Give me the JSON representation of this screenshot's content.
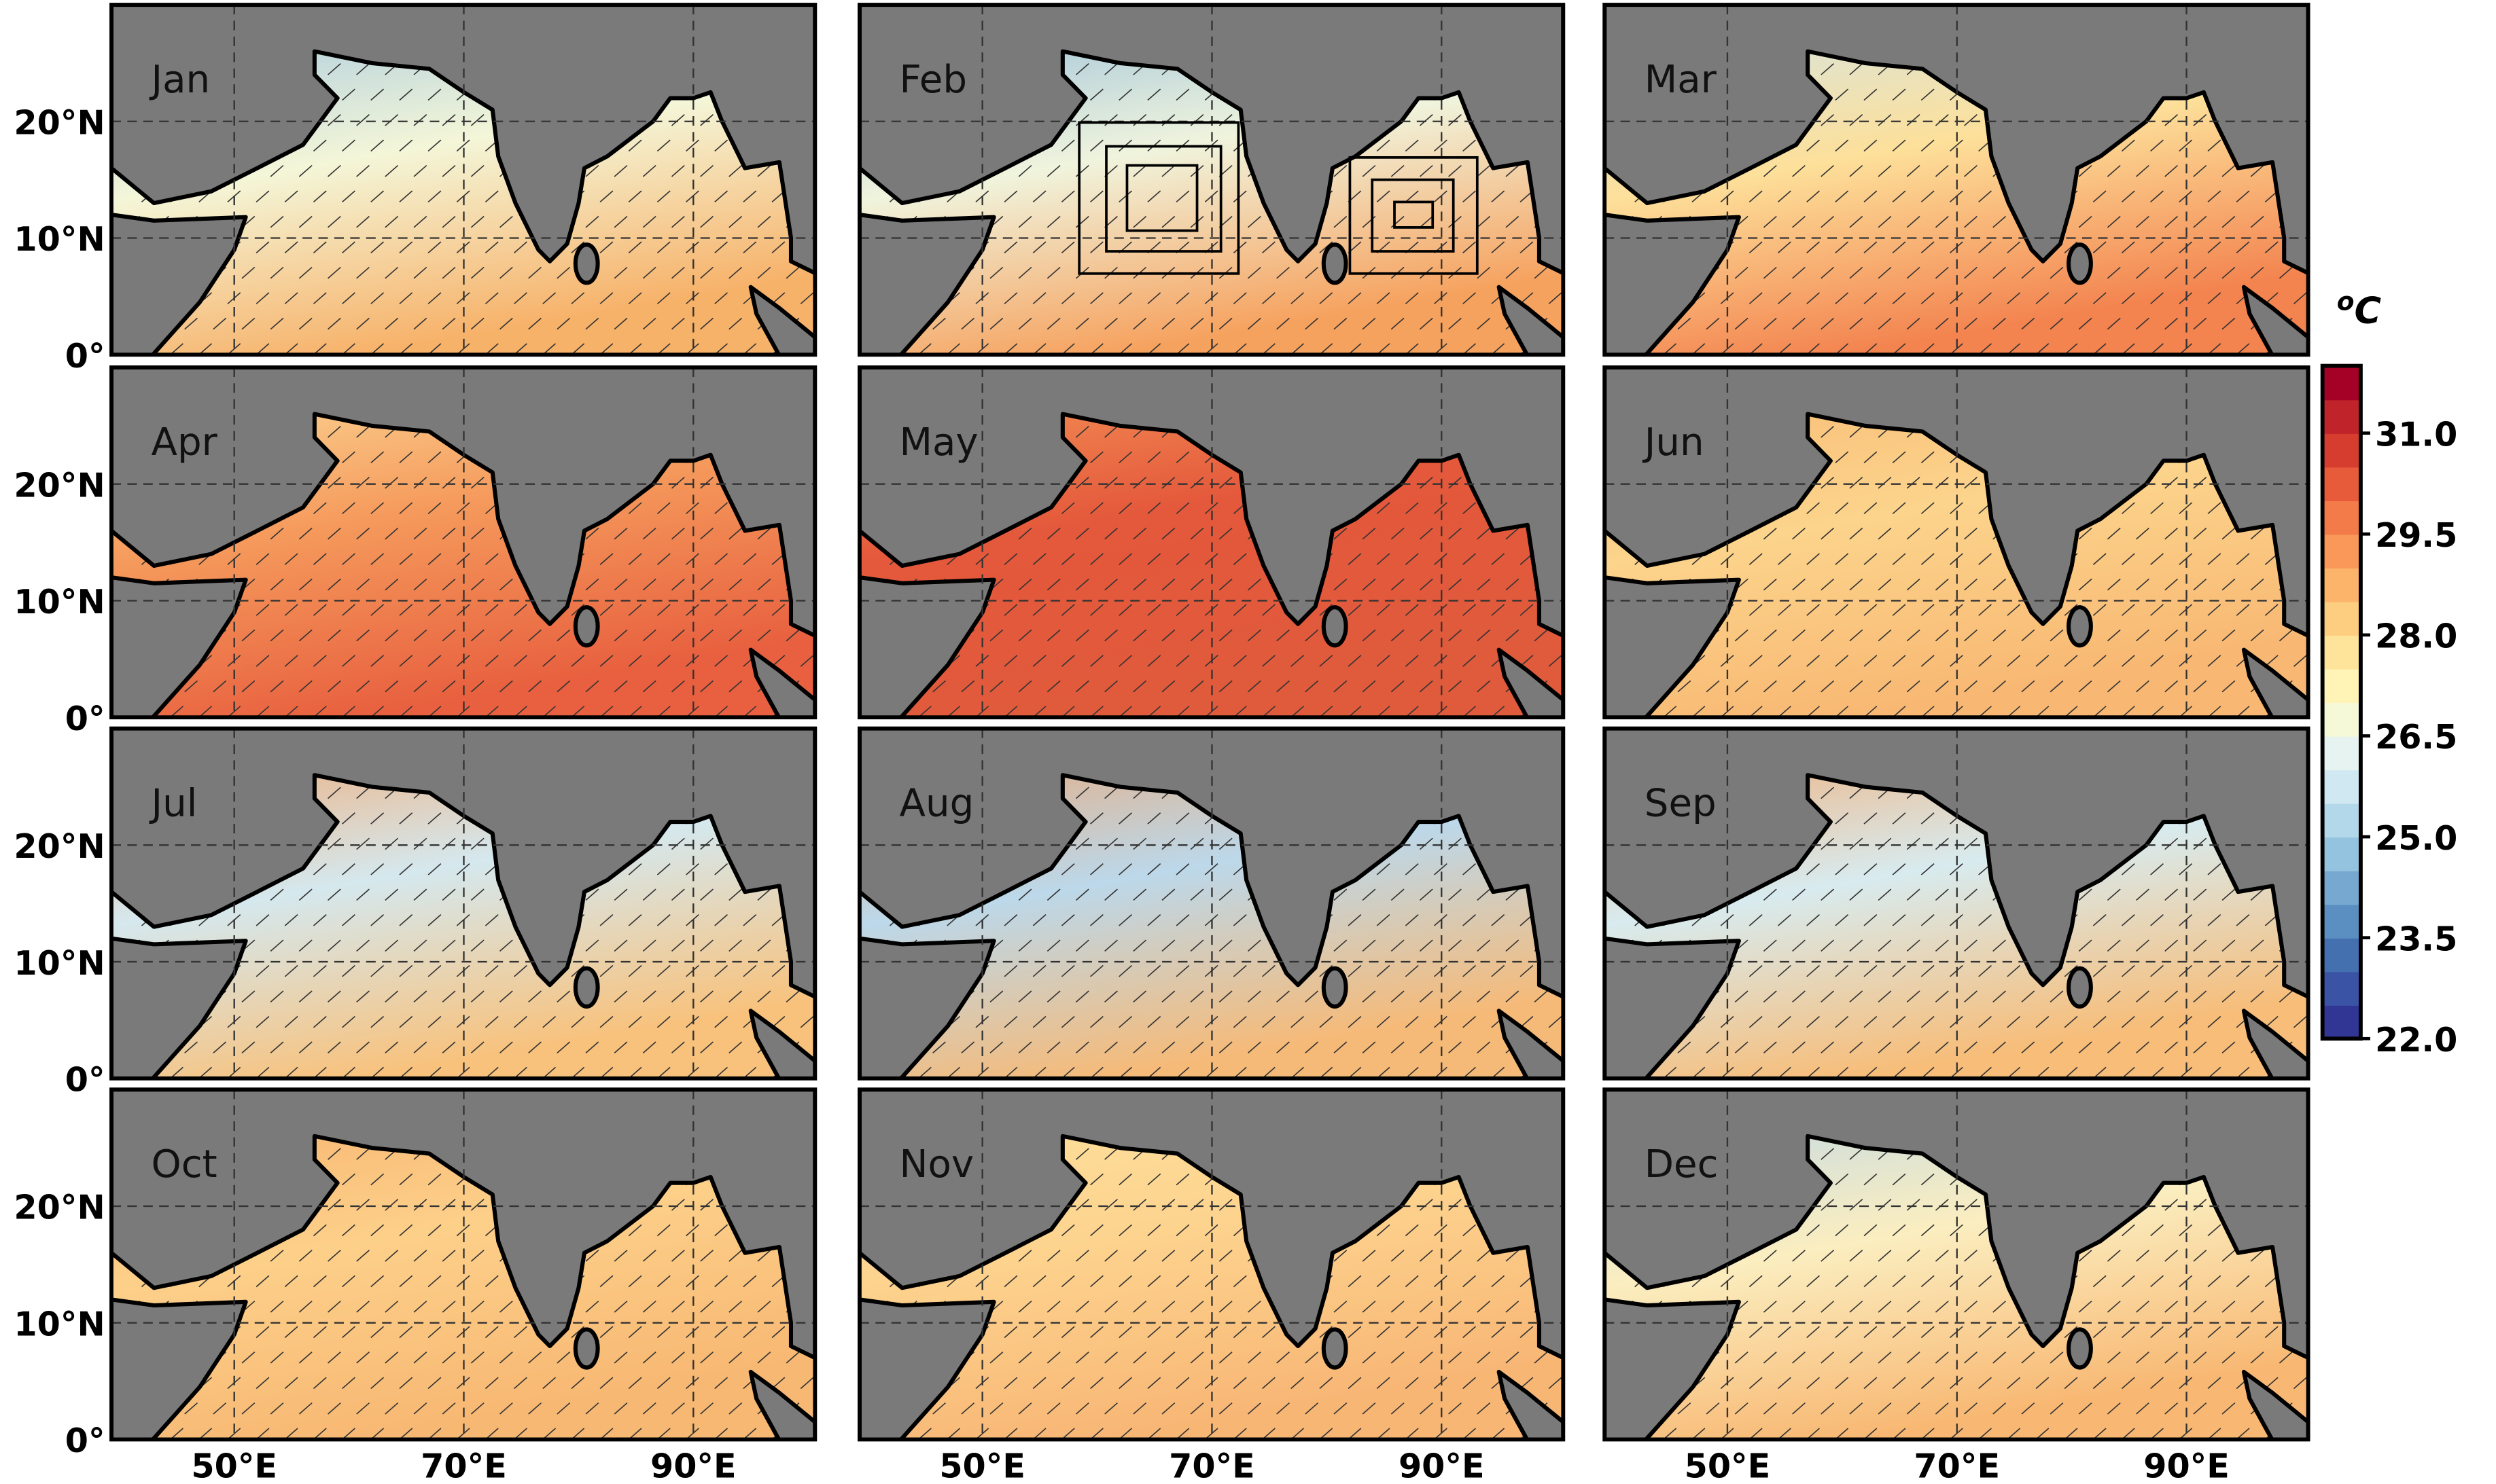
{
  "panels": [
    {
      "label": "Jan"
    },
    {
      "label": "Feb"
    },
    {
      "label": "Mar"
    },
    {
      "label": "Apr"
    },
    {
      "label": "May"
    },
    {
      "label": "Jun"
    },
    {
      "label": "Jul"
    },
    {
      "label": "Aug"
    },
    {
      "label": "Sep"
    },
    {
      "label": "Oct"
    },
    {
      "label": "Nov"
    },
    {
      "label": "Dec"
    }
  ],
  "lat_ticks": [
    {
      "value": 20,
      "label": "20°N"
    },
    {
      "value": 10,
      "label": "10°N"
    },
    {
      "value": 0,
      "label": "0°"
    }
  ],
  "lon_ticks": [
    {
      "value": 50,
      "label": "50°E"
    },
    {
      "value": 70,
      "label": "70°E"
    },
    {
      "value": 90,
      "label": "90°E"
    }
  ],
  "colorbar": {
    "unit": {
      "sup": "o",
      "main": "C"
    },
    "range": [
      22,
      32
    ],
    "ticks": [
      {
        "value": 22,
        "label": "22.0"
      },
      {
        "value": 23.5,
        "label": "23.5"
      },
      {
        "value": 25,
        "label": "25.0"
      },
      {
        "value": 26.5,
        "label": "26.5"
      },
      {
        "value": 28,
        "label": "28.0"
      },
      {
        "value": 29.5,
        "label": "29.5"
      },
      {
        "value": 31,
        "label": "31.0"
      }
    ],
    "colors": [
      "#313695",
      "#3a53a4",
      "#4570b0",
      "#5b8fc2",
      "#77a9d0",
      "#94c3df",
      "#b3d8e9",
      "#cfe8f1",
      "#e6f3f0",
      "#f6f9d8",
      "#fff3b5",
      "#fee39b",
      "#fdce80",
      "#fcb46a",
      "#f99858",
      "#f37b4a",
      "#e75b3b",
      "#d73d2e",
      "#c1232a",
      "#a50026"
    ]
  }
}
